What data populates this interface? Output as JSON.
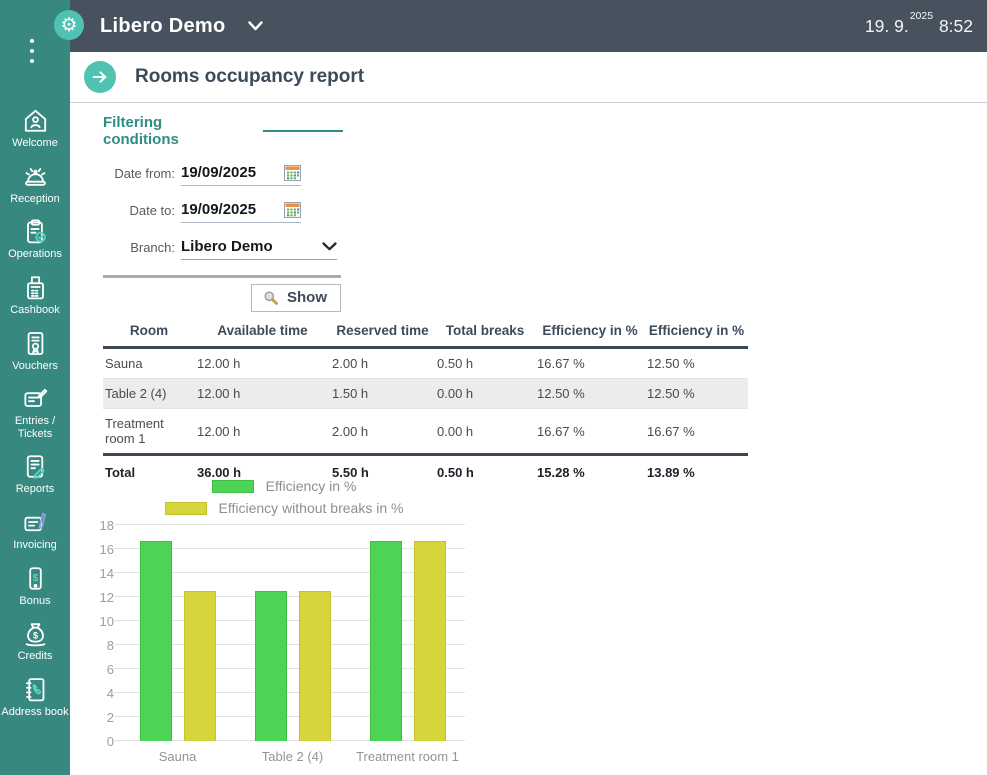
{
  "colors": {
    "sidebar_bg": "#37897f",
    "topbar_bg": "#47525e",
    "accent": "#4fc2b2",
    "heading_teal": "#2e8d85",
    "title_text": "#3d4a59",
    "bar_green": "#4ed455",
    "bar_yellow": "#d6d53c"
  },
  "topbar": {
    "app_title": "Libero Demo",
    "date": "19. 9.",
    "year": "2025",
    "time": "8:52"
  },
  "page": {
    "title": "Rooms occupancy report"
  },
  "sidebar": {
    "items": [
      {
        "label": "Welcome",
        "icon": "home"
      },
      {
        "label": "Reception",
        "icon": "bell"
      },
      {
        "label": "Operations",
        "icon": "clipboard-check"
      },
      {
        "label": "Cashbook",
        "icon": "cash-register"
      },
      {
        "label": "Vouchers",
        "icon": "voucher"
      },
      {
        "label": "Entries / Tickets",
        "icon": "entries"
      },
      {
        "label": "Reports",
        "icon": "report-edit"
      },
      {
        "label": "Invoicing",
        "icon": "invoice-pen"
      },
      {
        "label": "Bonus",
        "icon": "phone-dollar"
      },
      {
        "label": "Credits",
        "icon": "money-bag"
      },
      {
        "label": "Address book",
        "icon": "address-book"
      }
    ]
  },
  "filters": {
    "heading": "Filtering conditions",
    "date_from": {
      "label": "Date from:",
      "value": "19/09/2025"
    },
    "date_to": {
      "label": "Date to:",
      "value": "19/09/2025"
    },
    "branch": {
      "label": "Branch:",
      "value": "Libero Demo"
    },
    "show_button": "Show"
  },
  "table": {
    "headers": [
      "Room",
      "Available time",
      "Reserved time",
      "Total breaks",
      "Efficiency in %",
      "Efficiency in %"
    ],
    "rows": [
      [
        "Sauna",
        "12.00 h",
        "2.00 h",
        "0.50 h",
        "16.67 %",
        "12.50 %"
      ],
      [
        "Table 2 (4)",
        "12.00 h",
        "1.50 h",
        "0.00 h",
        "12.50 %",
        "12.50 %"
      ],
      [
        "Treatment room 1",
        "12.00 h",
        "2.00 h",
        "0.00 h",
        "16.67 %",
        "16.67 %"
      ]
    ],
    "total_row": [
      "Total",
      "36.00 h",
      "5.50 h",
      "0.50 h",
      "15.28 %",
      "13.89 %"
    ]
  },
  "chart_data": {
    "type": "bar",
    "categories": [
      "Sauna",
      "Table 2 (4)",
      "Treatment room 1"
    ],
    "series": [
      {
        "name": "Efficiency in %",
        "color": "#4ed455",
        "border": "#3fbf48",
        "values": [
          16.67,
          12.5,
          16.67
        ]
      },
      {
        "name": "Efficiency without breaks in %",
        "color": "#d6d53c",
        "border": "#c2c12e",
        "values": [
          12.5,
          12.5,
          16.67
        ]
      }
    ],
    "title": "",
    "xlabel": "",
    "ylabel": "",
    "ylim": [
      0,
      18
    ],
    "yticks": [
      0,
      2,
      4,
      6,
      8,
      10,
      12,
      14,
      16,
      18
    ],
    "grid": true,
    "legend_position": "top"
  }
}
